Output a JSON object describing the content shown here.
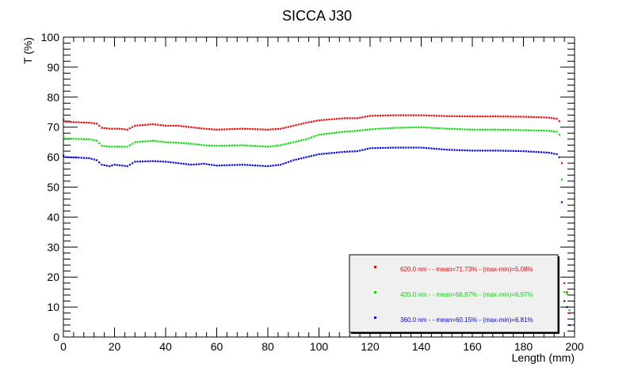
{
  "chart_data": {
    "type": "scatter",
    "title": "SICCA J30",
    "xlabel": "Length (mm)",
    "ylabel": "T (%)",
    "xlim": [
      0,
      200
    ],
    "ylim": [
      0,
      100
    ],
    "x_ticks": [
      0,
      20,
      40,
      60,
      80,
      100,
      120,
      140,
      160,
      180,
      200
    ],
    "y_ticks": [
      0,
      10,
      20,
      30,
      40,
      50,
      60,
      70,
      80,
      90,
      100
    ],
    "grid": false,
    "legend_position": "bottom-right",
    "series": [
      {
        "name": "620.0 nm -  - mean=71.73% - (max-min)=5.08%",
        "color": "#ff0000",
        "anchors": [
          [
            0,
            72.5
          ],
          [
            1,
            71.8
          ],
          [
            10,
            71.5
          ],
          [
            13,
            71.2
          ],
          [
            15,
            69.8
          ],
          [
            18,
            69.5
          ],
          [
            22,
            69.5
          ],
          [
            25,
            69.2
          ],
          [
            28,
            70.5
          ],
          [
            35,
            71.0
          ],
          [
            40,
            70.5
          ],
          [
            45,
            70.5
          ],
          [
            50,
            70.0
          ],
          [
            55,
            69.5
          ],
          [
            60,
            69.2
          ],
          [
            70,
            69.5
          ],
          [
            80,
            69.2
          ],
          [
            85,
            69.5
          ],
          [
            90,
            70.5
          ],
          [
            95,
            71.5
          ],
          [
            100,
            72.3
          ],
          [
            110,
            73.0
          ],
          [
            115,
            73.0
          ],
          [
            120,
            73.8
          ],
          [
            130,
            74.0
          ],
          [
            140,
            74.0
          ],
          [
            150,
            73.7
          ],
          [
            160,
            73.6
          ],
          [
            170,
            73.6
          ],
          [
            180,
            73.5
          ],
          [
            190,
            73.2
          ],
          [
            193,
            72.8
          ],
          [
            194,
            72.0
          ]
        ],
        "tail": [
          [
            195,
            58.0
          ],
          [
            196,
            18.0
          ],
          [
            197,
            15.0
          ],
          [
            198,
            8.0
          ]
        ]
      },
      {
        "name": "420.0 nm -  - mean=66.87% - (max-min)=6.97%",
        "color": "#00e000",
        "anchors": [
          [
            0,
            67.0
          ],
          [
            1,
            66.2
          ],
          [
            10,
            66.0
          ],
          [
            13,
            65.5
          ],
          [
            15,
            63.8
          ],
          [
            18,
            63.5
          ],
          [
            22,
            63.5
          ],
          [
            25,
            63.5
          ],
          [
            28,
            65.0
          ],
          [
            35,
            65.5
          ],
          [
            40,
            65.0
          ],
          [
            45,
            64.8
          ],
          [
            50,
            64.5
          ],
          [
            55,
            64.0
          ],
          [
            60,
            63.8
          ],
          [
            70,
            64.0
          ],
          [
            80,
            63.5
          ],
          [
            85,
            64.0
          ],
          [
            90,
            65.0
          ],
          [
            95,
            66.0
          ],
          [
            100,
            67.5
          ],
          [
            110,
            68.5
          ],
          [
            115,
            68.8
          ],
          [
            120,
            69.3
          ],
          [
            130,
            69.8
          ],
          [
            140,
            70.0
          ],
          [
            150,
            69.5
          ],
          [
            160,
            69.2
          ],
          [
            170,
            69.2
          ],
          [
            180,
            69.0
          ],
          [
            190,
            68.8
          ],
          [
            193,
            68.5
          ],
          [
            194,
            67.5
          ]
        ],
        "tail": [
          [
            195,
            52.5
          ],
          [
            196,
            15.0
          ],
          [
            197,
            14.5
          ],
          [
            198,
            9.0
          ]
        ]
      },
      {
        "name": "360.0 nm -  - mean=60.15% - (max-min)=6.81%",
        "color": "#0000ff",
        "anchors": [
          [
            0,
            60.5
          ],
          [
            1,
            60.0
          ],
          [
            10,
            59.7
          ],
          [
            13,
            59.0
          ],
          [
            15,
            57.5
          ],
          [
            18,
            57.0
          ],
          [
            20,
            57.5
          ],
          [
            25,
            57.0
          ],
          [
            28,
            58.5
          ],
          [
            35,
            58.7
          ],
          [
            40,
            58.5
          ],
          [
            45,
            58.0
          ],
          [
            50,
            57.5
          ],
          [
            55,
            57.8
          ],
          [
            60,
            57.2
          ],
          [
            70,
            57.5
          ],
          [
            80,
            57.0
          ],
          [
            85,
            57.5
          ],
          [
            90,
            59.0
          ],
          [
            95,
            60.0
          ],
          [
            100,
            61.0
          ],
          [
            110,
            61.8
          ],
          [
            115,
            62.0
          ],
          [
            120,
            63.0
          ],
          [
            130,
            63.2
          ],
          [
            140,
            63.2
          ],
          [
            150,
            62.5
          ],
          [
            160,
            62.2
          ],
          [
            170,
            62.2
          ],
          [
            180,
            62.0
          ],
          [
            190,
            61.5
          ],
          [
            193,
            61.0
          ],
          [
            194,
            60.0
          ]
        ],
        "tail": [
          [
            195,
            45.0
          ],
          [
            196,
            12.0
          ],
          [
            197,
            10.0
          ],
          [
            198,
            4.0
          ]
        ]
      }
    ]
  }
}
